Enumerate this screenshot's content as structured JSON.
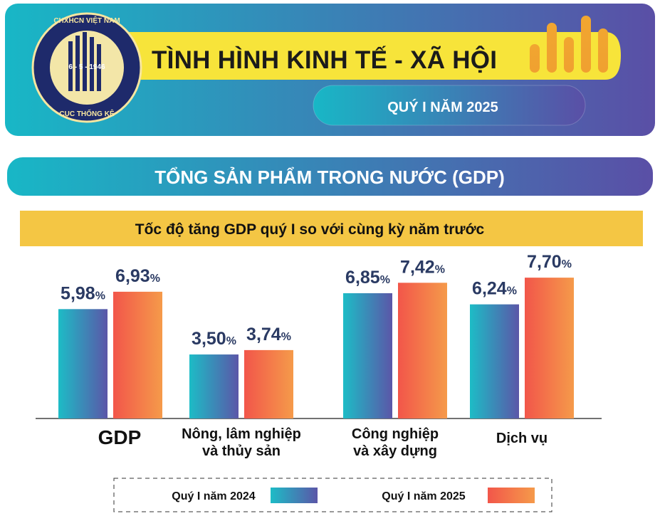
{
  "header": {
    "logo_top": "CHXHCN VIỆT NAM",
    "logo_date": "6 - 5 - 1946",
    "logo_bottom": "CỤC THỐNG KÊ",
    "title": "TÌNH HÌNH KINH TẾ - XÃ HỘI",
    "subtitle": "QUÝ I NĂM 2025"
  },
  "section": "TỔNG SẢN PHẨM TRONG NƯỚC (GDP)",
  "chart_data": {
    "type": "bar",
    "title": "Tốc độ tăng GDP quý I so với cùng kỳ năm trước",
    "categories": [
      "GDP",
      "Nông, lâm nghiệp và thủy sản",
      "Công nghiệp và xây dựng",
      "Dịch vụ"
    ],
    "series": [
      {
        "name": "Quý I năm 2024",
        "color": "#1dbcc6",
        "values": [
          5.98,
          3.5,
          6.85,
          6.24
        ],
        "value_labels": [
          "5,98%",
          "3,50%",
          "6,85%",
          "6,24%"
        ]
      },
      {
        "name": "Quý I năm 2025",
        "color": "#f2564a",
        "values": [
          6.93,
          3.74,
          7.42,
          7.7
        ],
        "value_labels": [
          "6,93%",
          "3,74%",
          "7,42%",
          "7,70%"
        ]
      }
    ]
  }
}
